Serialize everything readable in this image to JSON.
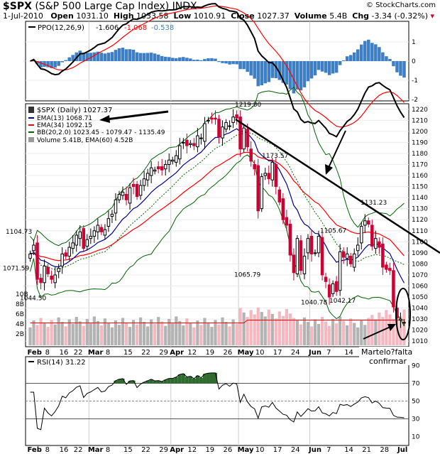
{
  "header": {
    "symbol": "$SPX",
    "name": "(S&P 500 Large Cap Index) INDX",
    "date": "1-Jul-2010",
    "open_label": "Open",
    "open": "1031.10",
    "high_label": "High",
    "high": "1033.58",
    "low_label": "Low",
    "low": "1010.91",
    "close_label": "Close",
    "close": "1027.37",
    "volume_label": "Volume",
    "volume": "5.4B",
    "chg_label": "Chg",
    "chg": "-3.34 (-0.32%)",
    "copyright": "© StockCharts.com"
  },
  "legend": {
    "ppo": "PPO(12,26,9)",
    "ppo_v1": "-1.606",
    "ppo_v2": "-1.068",
    "ppo_v3": "-0.538",
    "price": "$SPX (Daily) 1027.37",
    "ema13": "EMA(13) 1068.71",
    "ema34": "EMA(34) 1092.15",
    "bb": "BB(20,2.0) 1023.45 - 1079.47 - 1135.49",
    "volume": "Volume 5.41B, EMA(60) 4.52B",
    "rsi": "RSI(14) 31.22"
  },
  "annotations": {
    "martelo": "Martelo?falta",
    "confirmar": "confirmar"
  },
  "colors": {
    "up": "#000000",
    "down": "#cc0033",
    "ema13": "#00008b",
    "ema34": "#ff0000",
    "bb": "#006400",
    "ppo_line": "#000000",
    "signal": "#ff0000",
    "hist": "#3d7fc2",
    "vol_up": "#b3b3b3",
    "vol_down": "#f4b8c1",
    "rsi_fill": "#2e6b2e"
  },
  "chart_data": {
    "type": "candlestick",
    "x_labels": [
      "Feb",
      "8",
      "16",
      "22",
      "Mar",
      "8",
      "15",
      "22",
      "29",
      "Apr",
      "12",
      "19",
      "26",
      "May",
      "10",
      "17",
      "24",
      "Jun",
      "7",
      "14",
      "21",
      "28",
      "Jul"
    ],
    "price_ticks": [
      1010,
      1020,
      1030,
      1040,
      1050,
      1060,
      1070,
      1080,
      1090,
      1100,
      1110,
      1120,
      1130,
      1140,
      1150,
      1160,
      1170,
      1180,
      1190,
      1200,
      1210,
      1220
    ],
    "volume_ticks": [
      "2B",
      "4B",
      "6B",
      "8B",
      "10B"
    ],
    "ppo_ticks": [
      1,
      0,
      -1,
      -2
    ],
    "rsi_ticks": [
      90,
      70,
      50,
      30,
      10
    ],
    "price_labels": [
      {
        "text": "1219.80",
        "value": 1219.8
      },
      {
        "text": "1173.57",
        "value": 1173.57
      },
      {
        "text": "1131.23",
        "value": 1131.23
      },
      {
        "text": "1104.73",
        "value": 1104.73
      },
      {
        "text": "1105.67",
        "value": 1105.67
      },
      {
        "text": "1071.59",
        "value": 1071.59
      },
      {
        "text": "1065.79",
        "value": 1065.79
      },
      {
        "text": "1044.50",
        "value": 1044.5
      },
      {
        "text": "1040.78",
        "value": 1040.78
      },
      {
        "text": "1042.17",
        "value": 1042.17
      }
    ],
    "closes": [
      1089,
      1097,
      1066,
      1063,
      1078,
      1071,
      1066,
      1070,
      1076,
      1089,
      1087,
      1095,
      1099,
      1106,
      1109,
      1094,
      1102,
      1105,
      1110,
      1115,
      1109,
      1111,
      1121,
      1125,
      1138,
      1143,
      1145,
      1138,
      1149,
      1150,
      1141,
      1151,
      1157,
      1162,
      1167,
      1165,
      1166,
      1165,
      1170,
      1174,
      1174,
      1178,
      1187,
      1190,
      1187,
      1189,
      1187,
      1196,
      1194,
      1207,
      1210,
      1211,
      1211,
      1195,
      1204,
      1208,
      1205,
      1213,
      1212,
      1184,
      1203,
      1186,
      1173,
      1166,
      1128,
      1159,
      1162,
      1157,
      1172,
      1150,
      1136,
      1120,
      1115,
      1088,
      1072,
      1103,
      1074,
      1087,
      1103,
      1089,
      1090,
      1105,
      1070,
      1064,
      1050,
      1062,
      1055,
      1091,
      1086,
      1089,
      1080,
      1089,
      1097,
      1114,
      1119,
      1116,
      1096,
      1103,
      1095,
      1077,
      1075,
      1074,
      1041,
      1031,
      1030,
      1027
    ],
    "highs_lows_note": "derived from closes for rendering",
    "volume_avg_B": 4.5,
    "ppo_histogram_range": [
      -1.1,
      1.0
    ],
    "rsi_last": 31.22
  }
}
